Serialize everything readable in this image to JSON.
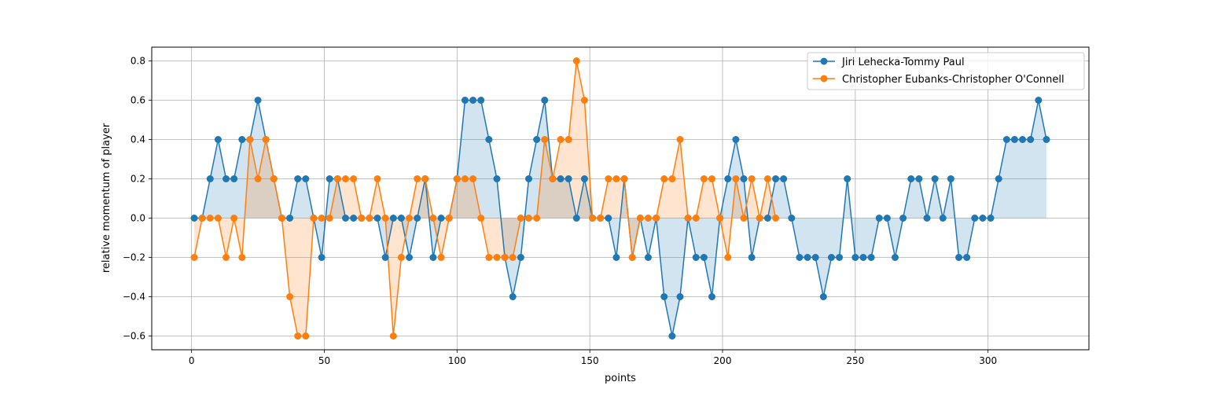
{
  "chart_data": {
    "type": "line",
    "xlabel": "points",
    "ylabel": "relative momentum of player",
    "xlim": [
      -15,
      338
    ],
    "ylim": [
      -0.67,
      0.87
    ],
    "xticks": [
      0,
      50,
      100,
      150,
      200,
      250,
      300
    ],
    "yticks": [
      -0.6,
      -0.4,
      -0.2,
      0.0,
      0.2,
      0.4,
      0.6,
      0.8
    ],
    "xtick_labels": [
      "0",
      "50",
      "100",
      "150",
      "200",
      "250",
      "300"
    ],
    "ytick_labels": [
      "−0.6",
      "−0.4",
      "−0.2",
      "0.0",
      "0.2",
      "0.4",
      "0.6",
      "0.8"
    ],
    "grid": true,
    "legend_position": "top-right",
    "series": [
      {
        "name": "Jiri Lehecka-Tommy Paul",
        "color": "#1f77b4",
        "fill_color": "#1f77b4",
        "x": [
          1,
          4,
          7,
          10,
          13,
          16,
          19,
          22,
          25,
          28,
          31,
          34,
          37,
          40,
          43,
          46,
          49,
          52,
          55,
          58,
          61,
          64,
          67,
          70,
          73,
          76,
          79,
          82,
          85,
          88,
          91,
          94,
          97,
          100,
          103,
          106,
          109,
          112,
          115,
          118,
          121,
          124,
          127,
          130,
          133,
          136,
          139,
          142,
          145,
          148,
          151,
          154,
          157,
          160,
          163,
          166,
          169,
          172,
          175,
          178,
          181,
          184,
          187,
          190,
          193,
          196,
          199,
          202,
          205,
          208,
          211,
          214,
          217,
          220,
          223,
          226,
          229,
          232,
          235,
          238,
          241,
          244,
          247,
          250,
          253,
          256,
          259,
          262,
          265,
          268,
          271,
          274,
          277,
          280,
          283,
          286,
          289,
          292,
          295,
          298,
          301,
          304,
          307,
          310,
          313,
          316,
          319,
          322
        ],
        "y": [
          0,
          0,
          0.2,
          0.4,
          0.2,
          0.2,
          0.4,
          0.4,
          0.6,
          0.4,
          0.2,
          0,
          0,
          0.2,
          0.2,
          0,
          -0.2,
          0.2,
          0.2,
          0,
          0,
          0,
          0,
          0,
          -0.2,
          0,
          0,
          -0.2,
          0,
          0.2,
          -0.2,
          0,
          0,
          0.2,
          0.6,
          0.6,
          0.6,
          0.4,
          0.2,
          -0.2,
          -0.4,
          -0.2,
          0.2,
          0.4,
          0.6,
          0.2,
          0.2,
          0.2,
          0,
          0.2,
          0,
          0,
          0,
          -0.2,
          0.2,
          -0.2,
          0,
          -0.2,
          0,
          -0.4,
          -0.6,
          -0.4,
          0,
          -0.2,
          -0.2,
          -0.4,
          0,
          0.2,
          0.4,
          0.2,
          -0.2,
          0,
          0,
          0.2,
          0.2,
          0,
          -0.2,
          -0.2,
          -0.2,
          -0.4,
          -0.2,
          -0.2,
          0.2,
          -0.2,
          -0.2,
          -0.2,
          0,
          0,
          -0.2,
          0,
          0.2,
          0.2,
          0,
          0.2,
          0,
          0.2,
          -0.2,
          -0.2,
          0,
          0,
          0,
          0.2,
          0.4,
          0.4,
          0.4,
          0.4,
          0.6,
          0.4
        ]
      },
      {
        "name": "Christopher Eubanks-Christopher O'Connell",
        "color": "#ff7f0e",
        "fill_color": "#ff7f0e",
        "x": [
          1,
          4,
          7,
          10,
          13,
          16,
          19,
          22,
          25,
          28,
          31,
          34,
          37,
          40,
          43,
          46,
          49,
          52,
          55,
          58,
          61,
          64,
          67,
          70,
          73,
          76,
          79,
          82,
          85,
          88,
          91,
          94,
          97,
          100,
          103,
          106,
          109,
          112,
          115,
          118,
          121,
          124,
          127,
          130,
          133,
          136,
          139,
          142,
          145,
          148,
          151,
          154,
          157,
          160,
          163,
          166,
          169,
          172,
          175,
          178,
          181,
          184,
          187,
          190,
          193,
          196,
          199,
          202,
          205,
          208,
          211,
          214,
          217,
          220
        ],
        "y": [
          -0.2,
          0,
          0,
          0,
          -0.2,
          0,
          -0.2,
          0.4,
          0.2,
          0.4,
          0.2,
          0,
          -0.4,
          -0.6,
          -0.6,
          0,
          0,
          0,
          0.2,
          0.2,
          0.2,
          0,
          0,
          0.2,
          0,
          -0.6,
          -0.2,
          0,
          0.2,
          0.2,
          0,
          -0.2,
          0,
          0.2,
          0.2,
          0.2,
          0,
          -0.2,
          -0.2,
          -0.2,
          -0.2,
          0,
          0,
          0,
          0.4,
          0.2,
          0.4,
          0.4,
          0.8,
          0.6,
          0,
          0,
          0.2,
          0.2,
          0.2,
          -0.2,
          0,
          0,
          0,
          0.2,
          0.2,
          0.4,
          0,
          0,
          0.2,
          0.2,
          0,
          -0.2,
          0.2,
          0,
          0.2,
          0,
          0.2,
          0
        ]
      }
    ]
  }
}
